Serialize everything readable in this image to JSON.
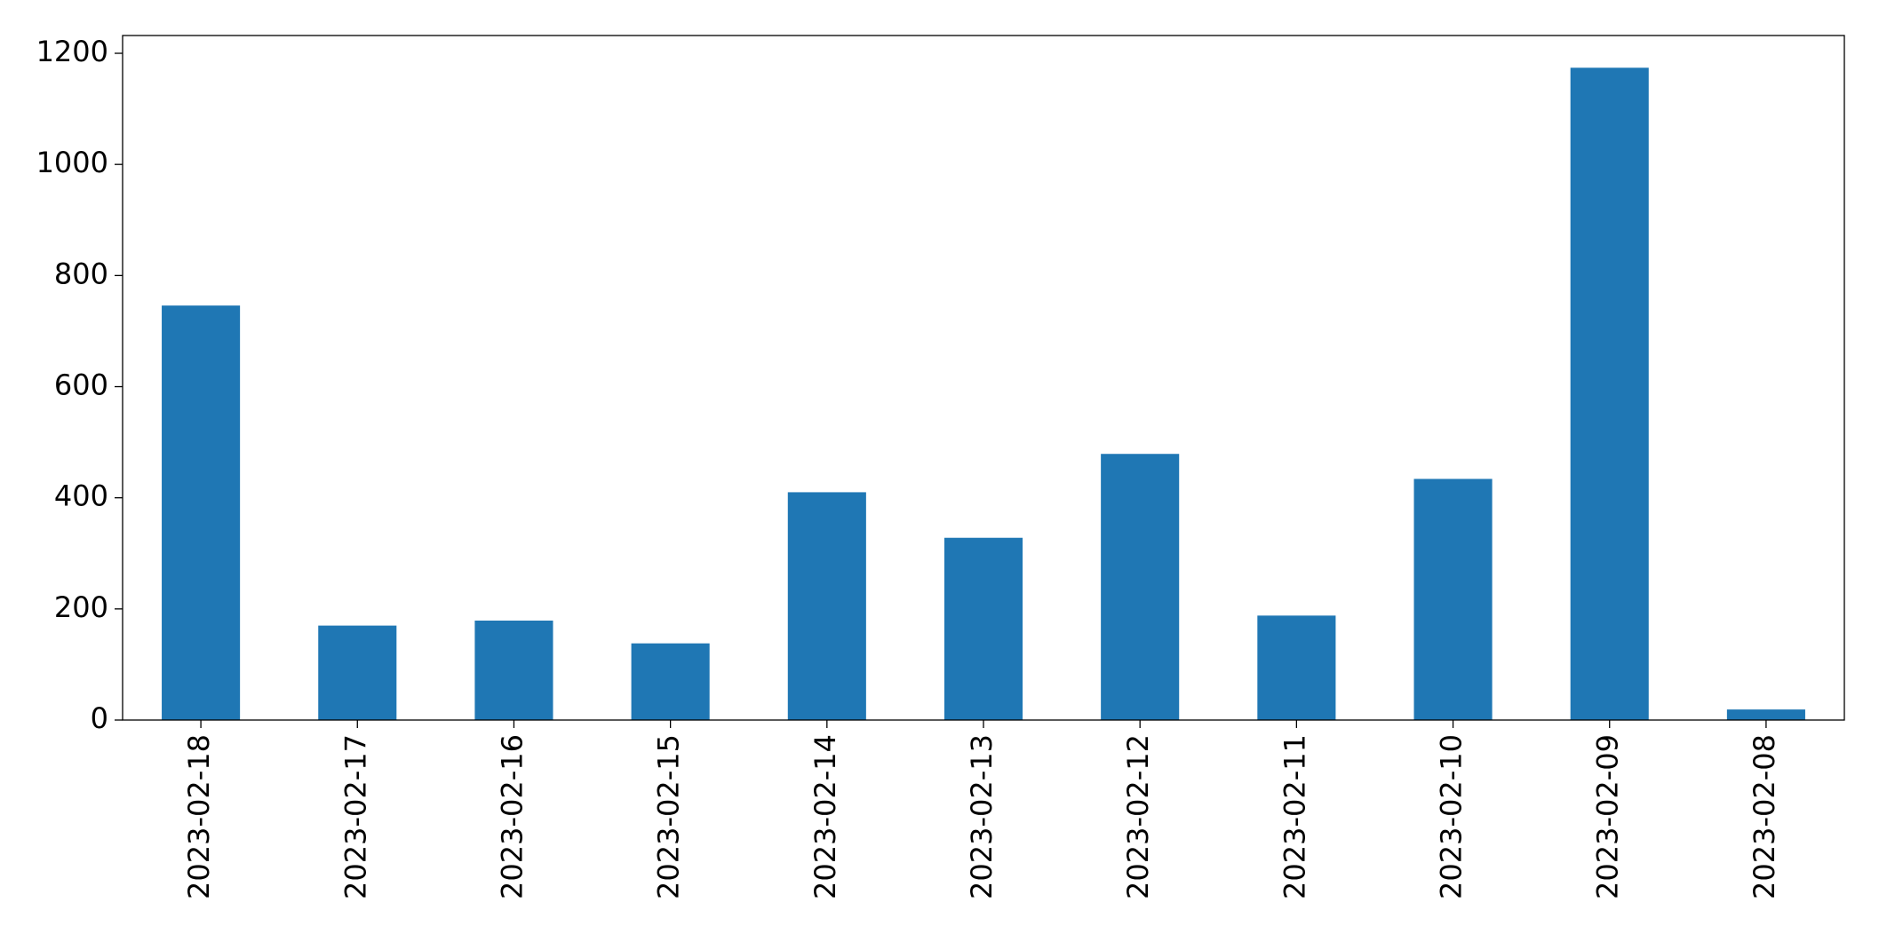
{
  "chart_data": {
    "type": "bar",
    "categories": [
      "2023-02-18",
      "2023-02-17",
      "2023-02-16",
      "2023-02-15",
      "2023-02-14",
      "2023-02-13",
      "2023-02-12",
      "2023-02-11",
      "2023-02-10",
      "2023-02-09",
      "2023-02-08"
    ],
    "values": [
      746,
      170,
      179,
      138,
      410,
      328,
      479,
      188,
      434,
      1174,
      19
    ],
    "color": "#1f77b4",
    "ylim": [
      0,
      1232
    ],
    "yticks": [
      0,
      200,
      400,
      600,
      800,
      1000,
      1200
    ],
    "grid": false
  }
}
